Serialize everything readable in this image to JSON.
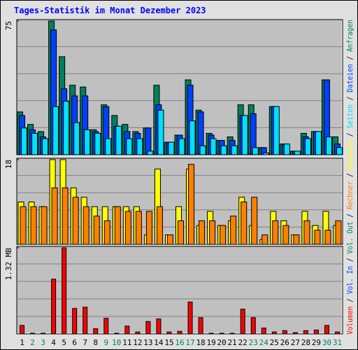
{
  "chart_data": {
    "type": "bar",
    "title": "Tages-Statistik im Monat Dezember 2023",
    "categories": [
      "1",
      "2",
      "3",
      "4",
      "5",
      "6",
      "7",
      "8",
      "9",
      "10",
      "11",
      "12",
      "13",
      "14",
      "15",
      "16",
      "17",
      "18",
      "19",
      "20",
      "21",
      "22",
      "23",
      "24",
      "25",
      "26",
      "27",
      "28",
      "29",
      "30",
      "31"
    ],
    "category_colors": [
      "#000000",
      "#008060",
      "#008060",
      "#000000",
      "#000000",
      "#000000",
      "#000000",
      "#000000",
      "#008060",
      "#008060",
      "#000000",
      "#000000",
      "#000000",
      "#000000",
      "#000000",
      "#008060",
      "#008060",
      "#000000",
      "#000000",
      "#000000",
      "#000000",
      "#000000",
      "#008060",
      "#008060",
      "#000000",
      "#000000",
      "#000000",
      "#000000",
      "#000000",
      "#008060",
      "#008060"
    ],
    "panels": [
      {
        "ylim": [
          0,
          75
        ],
        "yticks": [
          75
        ],
        "series": [
          {
            "name": "Anfragen",
            "color": "#00805c",
            "values": [
              24,
              17,
              13,
              75,
              55,
              39,
              38,
              14,
              28,
              22,
              17,
              13,
              15,
              39,
              7,
              11,
              42,
              25,
              12,
              8,
              10,
              28,
              28,
              4,
              27,
              6,
              2,
              12,
              13,
              42,
              10
            ]
          },
          {
            "name": "Dateien",
            "color": "#0040ff",
            "values": [
              22,
              14,
              10,
              70,
              37,
              33,
              33,
              13,
              27,
              16,
              13,
              12,
              15,
              28,
              7,
              11,
              39,
              24,
              11,
              8,
              8,
              22,
              23,
              4,
              27,
              6,
              2,
              10,
              13,
              42,
              6
            ]
          },
          {
            "name": "Seiten",
            "color": "#00e0ff",
            "values": [
              15,
              12,
              9,
              27,
              30,
              18,
              14,
              12,
              9,
              16,
              9,
              9,
              2,
              25,
              7,
              9,
              19,
              5,
              9,
              5,
              5,
              22,
              4,
              1,
              27,
              6,
              2,
              9,
              13,
              10,
              4
            ]
          }
        ]
      },
      {
        "ylim": [
          0,
          18
        ],
        "yticks": [
          18
        ],
        "series": [
          {
            "name": "Besuche",
            "color": "#ffff00",
            "values": [
              9,
              9,
              8,
              18,
              18,
              12,
              10,
              8,
              8,
              8,
              8,
              8,
              2,
              16,
              2,
              8,
              16,
              4,
              7,
              4,
              5,
              10,
              4,
              1,
              7,
              5,
              2,
              7,
              4,
              7,
              4
            ]
          },
          {
            "name": "Rechner",
            "color": "#ff8000",
            "values": [
              8,
              8,
              8,
              12,
              12,
              10,
              8,
              6,
              5,
              8,
              7,
              7,
              7,
              8,
              2,
              5,
              17,
              5,
              5,
              4,
              6,
              9,
              10,
              2,
              5,
              4,
              2,
              5,
              3,
              3,
              5
            ]
          }
        ]
      },
      {
        "ylim": [
          0,
          1.32
        ],
        "yticks": [
          {
            "value": 1.32,
            "label": "1.32 MB"
          }
        ],
        "series": [
          {
            "name": "Volumen",
            "color": "#ff0000",
            "values": [
              0.13,
              0.01,
              0.01,
              0.84,
              1.32,
              0.39,
              0.41,
              0.08,
              0.24,
              0.01,
              0.12,
              0.03,
              0.19,
              0.23,
              0.03,
              0.04,
              0.49,
              0.25,
              0.01,
              0.01,
              0.01,
              0.38,
              0.25,
              0.09,
              0.03,
              0.05,
              0.02,
              0.05,
              0.06,
              0.13,
              0.03
            ]
          },
          {
            "name": "Vol. In",
            "color": "#0040ff",
            "values": [
              null,
              null,
              null,
              null,
              null,
              null,
              null,
              null,
              null,
              null,
              null,
              null,
              null,
              null,
              null,
              null,
              null,
              null,
              null,
              null,
              null,
              null,
              null,
              null,
              null,
              null,
              null,
              null,
              null,
              null,
              null
            ]
          },
          {
            "name": "Vol. Out",
            "color": "#00805c",
            "values": [
              null,
              null,
              null,
              null,
              null,
              null,
              null,
              null,
              null,
              null,
              null,
              null,
              null,
              null,
              null,
              null,
              null,
              null,
              null,
              null,
              null,
              null,
              null,
              null,
              null,
              null,
              null,
              null,
              null,
              null,
              null
            ]
          }
        ]
      }
    ]
  }
}
